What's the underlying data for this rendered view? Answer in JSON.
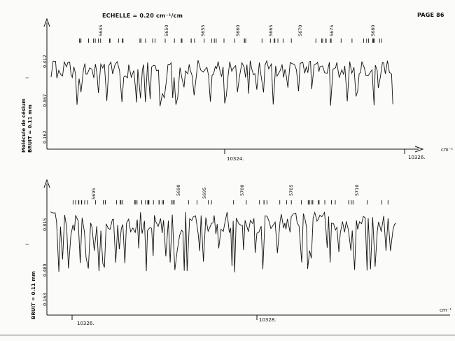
{
  "header": {
    "scale_label": "ECHELLE = 0.20 cm⁻¹/cm",
    "page_label": "PAGE 86"
  },
  "side": {
    "molecule": "Molécule de césium",
    "noise_top": "BRUIT = 0.11 mm",
    "noise_bottom": "BRUIT = 0.11 mm"
  },
  "colors": {
    "ink": "#111111",
    "paper": "#fbfbf9"
  },
  "chart_data": [
    {
      "type": "line",
      "title": "",
      "x_unit_label": "cm⁻¹",
      "x_ticks": [
        "10324.",
        "10326."
      ],
      "y_tick_labels": [
        "0.412",
        "0.467",
        "0.162"
      ],
      "y_symbol": "I",
      "line_number_labels": [
        "5645",
        "5650",
        "5655",
        "5660",
        "5665",
        "5670",
        "5675",
        "5680"
      ],
      "grid": false
    },
    {
      "type": "line",
      "title": "",
      "x_unit_label": "cm⁻¹",
      "x_ticks": [
        "10326.",
        "10328."
      ],
      "y_tick_labels": [
        "0.815",
        "0.489",
        "0.163"
      ],
      "y_symbol": "I",
      "line_number_labels": [
        "5695",
        "5690",
        "5695",
        "5700",
        "5705",
        "5710"
      ],
      "grid": false
    }
  ]
}
